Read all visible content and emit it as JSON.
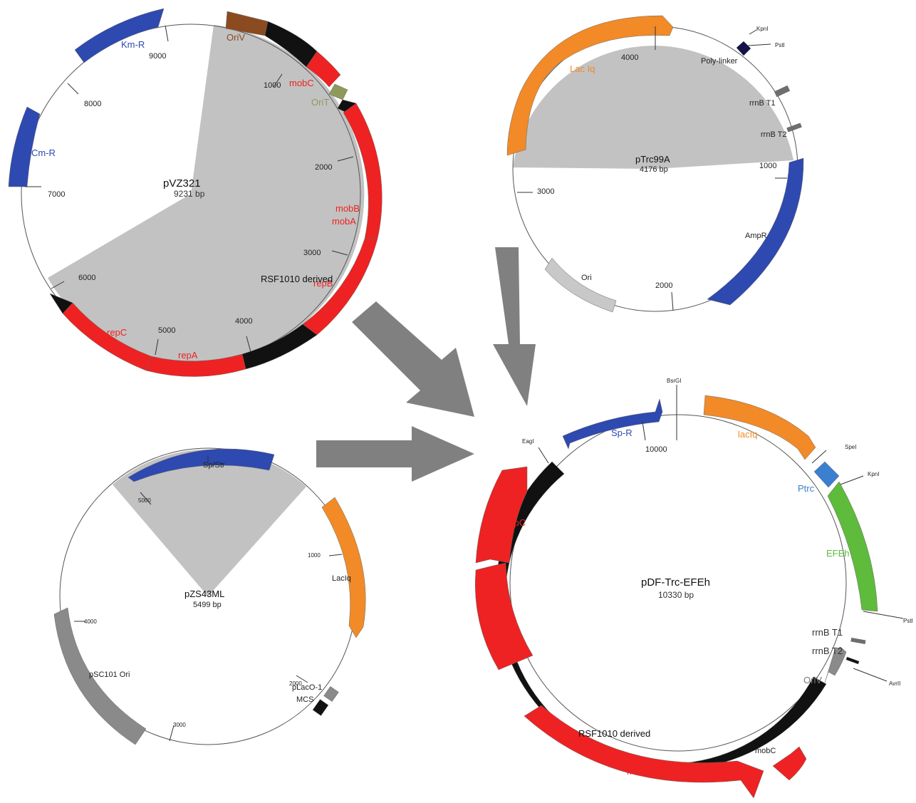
{
  "colors": {
    "red": "#ee2222",
    "blue": "#2e49b0",
    "orange": "#f28a28",
    "green": "#5ebb3b",
    "gray": "#8a8a8a",
    "lightgray": "#c8c8c8",
    "brown": "#8b4a1f",
    "olive": "#8f9a5a",
    "black": "#111111",
    "arrow": "#808080",
    "shade": "#c2c2c2",
    "ptrc": "#3b7fd0",
    "navy": "#14144a"
  },
  "plasmids": {
    "pvz321": {
      "name": "pVZ321",
      "size": "9231 bp",
      "region_label": "RSF1010 derived",
      "ticks": [
        "1000",
        "2000",
        "3000",
        "4000",
        "5000",
        "6000",
        "7000",
        "8000",
        "9000"
      ],
      "features": [
        "OriV",
        "mobC",
        "OriT",
        "mobB",
        "mobA",
        "repB",
        "repA",
        "repC",
        "Cm-R",
        "Km-R"
      ]
    },
    "ptrc99a": {
      "name": "pTrc99A",
      "size": "4176 bp",
      "ticks": [
        "1000",
        "2000",
        "3000",
        "4000"
      ],
      "features": [
        "Lac Iq",
        "Poly-linker",
        "rrnB T1",
        "rrnB T2",
        "AmpR",
        "Ori"
      ],
      "sites": [
        "KpnI",
        "PstI"
      ]
    },
    "pzs43ml": {
      "name": "pZS43ML",
      "size": "5499 bp",
      "ticks": [
        "1000",
        "2000",
        "3000",
        "4000",
        "5000"
      ],
      "features": [
        "Sp/Str",
        "LacIq",
        "pLacO-1",
        "MCS",
        "pSC101 Ori"
      ]
    },
    "pdf": {
      "name": "pDF-Trc-EFEh",
      "size": "10330 bp",
      "region_label": "RSF1010 derived",
      "ticks": [
        "10000"
      ],
      "features": [
        "Sp-R",
        "lacIq",
        "Ptrc",
        "EFEh",
        "rrnB T1",
        "rrnB T2",
        "OriV",
        "mobC",
        "mobA",
        "repA",
        "repC"
      ],
      "sites": [
        "BsrGI",
        "EagI",
        "SpeI",
        "KpnI",
        "PstI",
        "AvrII"
      ]
    }
  }
}
